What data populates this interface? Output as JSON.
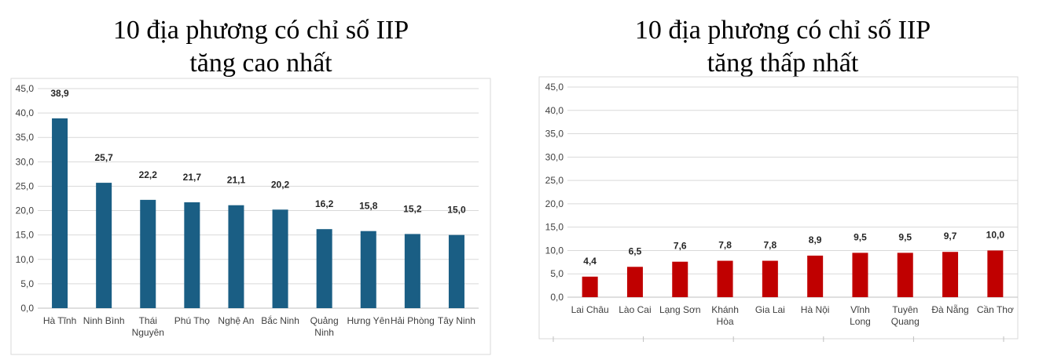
{
  "chart_data": [
    {
      "type": "bar",
      "title_line1": "10 địa phương có chỉ số IIP",
      "title_line2": "tăng cao nhất",
      "categories": [
        [
          "Hà Tĩnh"
        ],
        [
          "Ninh Bình"
        ],
        [
          "Thái",
          "Nguyên"
        ],
        [
          "Phú Thọ"
        ],
        [
          "Nghệ An"
        ],
        [
          "Bắc Ninh"
        ],
        [
          "Quảng",
          "Ninh"
        ],
        [
          "Hưng Yên"
        ],
        [
          "Hải Phòng"
        ],
        [
          "Tây Ninh"
        ]
      ],
      "values": [
        38.9,
        25.7,
        22.2,
        21.7,
        21.1,
        20.2,
        16.2,
        15.8,
        15.2,
        15.0
      ],
      "value_labels": [
        "38,9",
        "25,7",
        "22,2",
        "21,7",
        "21,1",
        "20,2",
        "16,2",
        "15,8",
        "15,2",
        "15,0"
      ],
      "ylim": [
        0,
        45
      ],
      "yticks": [
        "0,0",
        "5,0",
        "10,0",
        "15,0",
        "20,0",
        "25,0",
        "30,0",
        "35,0",
        "40,0",
        "45,0"
      ],
      "grid": true,
      "color": "#1a5e84"
    },
    {
      "type": "bar",
      "title_line1": "10 địa phương có chỉ số IIP",
      "title_line2": "tăng thấp nhất",
      "categories": [
        [
          "Lai Châu"
        ],
        [
          "Lào Cai"
        ],
        [
          "Lạng Sơn"
        ],
        [
          "Khánh",
          "Hòa"
        ],
        [
          "Gia Lai"
        ],
        [
          "Hà Nội"
        ],
        [
          "Vĩnh",
          "Long"
        ],
        [
          "Tuyên",
          "Quang"
        ],
        [
          "Đà Nẵng"
        ],
        [
          "Cần Thơ"
        ]
      ],
      "values": [
        4.4,
        6.5,
        7.6,
        7.8,
        7.8,
        8.9,
        9.5,
        9.5,
        9.7,
        10.0
      ],
      "value_labels": [
        "4,4",
        "6,5",
        "7,6",
        "7,8",
        "7,8",
        "8,9",
        "9,5",
        "9,5",
        "9,7",
        "10,0"
      ],
      "ylim": [
        0,
        45
      ],
      "yticks": [
        "0,0",
        "5,0",
        "10,0",
        "15,0",
        "20,0",
        "25,0",
        "30,0",
        "35,0",
        "40,0",
        "45,0"
      ],
      "grid": true,
      "color": "#c00000"
    }
  ]
}
